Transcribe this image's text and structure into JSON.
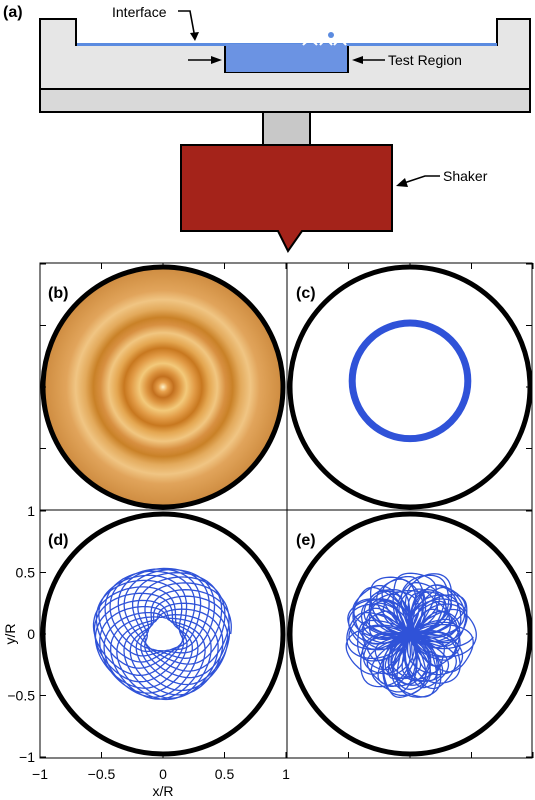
{
  "panel_a": {
    "label": "(a)",
    "interface_label": "Interface",
    "test_region_label": "Test Region",
    "shaker_label": "Shaker"
  },
  "panel_b": {
    "label": "(b)"
  },
  "panel_c": {
    "label": "(c)"
  },
  "panel_d": {
    "label": "(d)"
  },
  "panel_e": {
    "label": "(e)"
  },
  "axes": {
    "xlabel": "x/R",
    "ylabel": "y/R",
    "xticks": [
      "−1",
      "−0.5",
      "0",
      "0.5",
      "1"
    ],
    "yticks": [
      "1",
      "0.5",
      "0",
      "−0.5",
      "−1"
    ]
  },
  "colors": {
    "fluid": "#5b8be0",
    "trajectory": "#2f52d8",
    "shaker": "#a4231a",
    "frame": "#e6e6e6",
    "stem": "#c8c8c8",
    "wall": "#000000"
  },
  "chart_data": [
    {
      "panel": "c",
      "type": "line",
      "description_key": "circular orbit",
      "xlim": [
        -1,
        1
      ],
      "ylim": [
        -1,
        1
      ],
      "orbit": {
        "radius": 0.47,
        "center": [
          0.0,
          0.05
        ]
      }
    },
    {
      "panel": "d",
      "type": "line",
      "xlim": [
        -1,
        1
      ],
      "ylim": [
        -1,
        1
      ],
      "orbit": {
        "r_inner": 0.14,
        "r_outer": 0.55,
        "center": [
          0.0,
          0.0
        ]
      }
    },
    {
      "panel": "e",
      "type": "line",
      "xlim": [
        -1,
        1
      ],
      "ylim": [
        -1,
        1
      ],
      "orbit": {
        "r_inner": 0.0,
        "r_outer": 0.53,
        "center": [
          0.0,
          0.0
        ]
      }
    }
  ]
}
